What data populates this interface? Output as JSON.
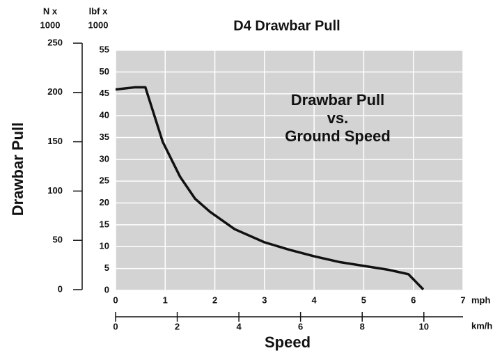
{
  "chart_data": {
    "type": "line",
    "title": "D4 Drawbar Pull",
    "annotation": [
      "Drawbar Pull",
      "vs.",
      "Ground Speed"
    ],
    "y_label": "Drawbar Pull",
    "x_label": "Speed",
    "y_unit_label": [
      "lbf x",
      "1000"
    ],
    "y2_unit_label": [
      "N x",
      "1000"
    ],
    "x_unit_label": "mph",
    "x2_unit_label": "km/h",
    "plot_background": "#d3d3d3",
    "grid": true,
    "x": [
      0,
      0.4,
      0.6,
      0.95,
      1.3,
      1.6,
      1.9,
      2.4,
      3,
      3.5,
      4,
      4.5,
      5,
      5.5,
      5.9,
      6.2
    ],
    "series": [
      {
        "name": "Drawbar Pull",
        "color": "#111111",
        "values": [
          46,
          46.5,
          46.5,
          34,
          26,
          21,
          18,
          14,
          11,
          9.3,
          7.8,
          6.5,
          5.6,
          4.7,
          3.7,
          0.2
        ]
      }
    ],
    "xlim": [
      0,
      7
    ],
    "xticks": [
      0,
      1,
      2,
      3,
      4,
      5,
      6,
      7
    ],
    "ylim": [
      0,
      55
    ],
    "yticks": [
      0,
      5,
      10,
      15,
      20,
      25,
      30,
      35,
      40,
      45,
      50,
      55
    ],
    "y2lim": [
      0,
      250
    ],
    "y2ticks": [
      0,
      50,
      100,
      150,
      200,
      250
    ],
    "x2lim": [
      0,
      11.27
    ],
    "x2ticks": [
      0,
      2,
      4,
      6,
      8,
      10
    ]
  }
}
